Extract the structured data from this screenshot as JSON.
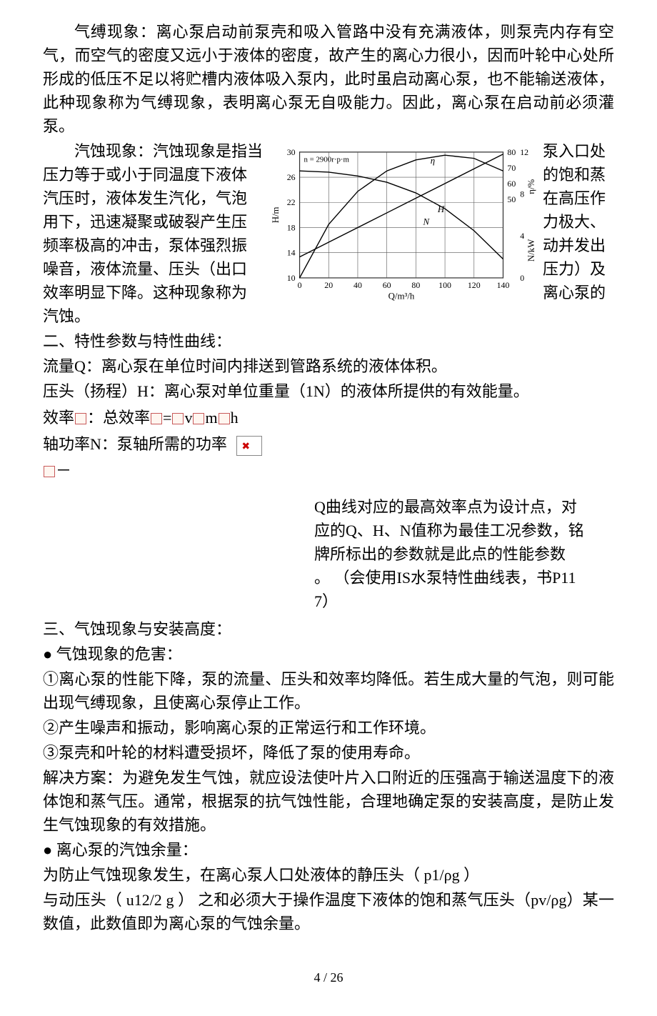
{
  "p1": "气缚现象：离心泵启动前泵壳和吸入管路中没有充满液体，则泵壳内存有空气，而空气的密度又远小于液体的密度，故产生的离心力很小，因而叶轮中心处所形成的低压不足以将贮槽内液体吸入泵内，此时虽启动离心泵，也不能输送液体，此种现象称为气缚现象，表明离心泵无自吸能力。因此，离心泵在启动前必须灌泵。",
  "wrap_left": {
    "l0": "汽蚀现象：汽蚀现象是指当",
    "l1": "压力等于或小于同温度下液体",
    "l2": "汽压时，液体发生汽化，气泡",
    "l3": "用下，迅速凝聚或破裂产生压",
    "l4": "频率极高的冲击，泵体强烈振",
    "l5": "噪音，液体流量、压头（出口",
    "l6": "效率明显下降。这种现象称为",
    "l7": "汽蚀。"
  },
  "wrap_right": {
    "r0": "泵入口处",
    "r1": "的饱和蒸",
    "r2": "在高压作",
    "r3": "力极大、",
    "r4": "动并发出",
    "r5": "压力）及",
    "r6": "离心泵的"
  },
  "chart": {
    "rpm_label": "n = 2900r·p·m",
    "x_label": "Q/m³/h",
    "y_left_label": "H/m",
    "y_right_label_top": "η/%",
    "y_right_label_bottom": "N/kW",
    "series_labels": {
      "eta": "η",
      "H": "H",
      "N": "N"
    },
    "x_ticks": [
      0,
      20,
      40,
      60,
      80,
      100,
      120,
      140
    ],
    "y_left_ticks": [
      10,
      14,
      18,
      22,
      26,
      30
    ],
    "y_right_eta_ticks": [
      50,
      60,
      70,
      80
    ],
    "y_right_N_ticks": [
      0,
      4,
      8,
      12
    ],
    "H_series": {
      "x": [
        0,
        20,
        40,
        60,
        80,
        100,
        120,
        140
      ],
      "y": [
        27,
        26.8,
        26.2,
        25.2,
        23.5,
        21,
        17.5,
        13
      ]
    },
    "eta_series": {
      "x": [
        0,
        20,
        40,
        60,
        80,
        100,
        120,
        140
      ],
      "y": [
        0,
        34,
        55,
        68,
        75,
        78,
        76,
        68
      ]
    },
    "N_series": {
      "x": [
        0,
        20,
        40,
        60,
        80,
        100,
        120,
        140
      ],
      "y": [
        2,
        3.4,
        4.8,
        6.2,
        7.6,
        9,
        10.4,
        11.8
      ]
    },
    "colors": {
      "frame": "#000000",
      "grid": "#555555",
      "curve": "#000000",
      "text": "#000000",
      "bg": "#ffffff"
    },
    "font_size_ticks": 12,
    "font_size_label": 13,
    "line_width": 1.4
  },
  "sec2_heading": "二、特性参数与特性曲线：",
  "sec2_q": "流量Q：离心泵在单位时间内排送到管路系统的液体体积。",
  "sec2_h": "压头（扬程）H：离心泵对单位重量（1N）的液体所提供的有效能量。",
  "sec2_eff_pre": "效率",
  "sec2_eff_mid": "：总效率",
  "sec2_eff_eq1": "=",
  "sec2_eff_v": "v",
  "sec2_eff_m": "m",
  "sec2_eff_h": "h",
  "sec2_n": "轴功率N：泵轴所需的功率",
  "sec2_dash": "－",
  "right_block": {
    "l1": "Q曲线对应的最高效率点为设计点，对",
    "l2": "应的Q、H、N值称为最佳工况参数，铭",
    "l3": "牌所标出的参数就是此点的性能参数",
    "l4": "。 （会使用IS水泵特性曲线表，书P11",
    "l5": "7）"
  },
  "sec3_heading": "三、气蚀现象与安装高度：",
  "sec3_b1": "●  气蚀现象的危害：",
  "sec3_1": "①离心泵的性能下降，泵的流量、压头和效率均降低。若生成大量的气泡，则可能出现气缚现象，且使离心泵停止工作。",
  "sec3_2": "②产生噪声和振动，影响离心泵的正常运行和工作环境。",
  "sec3_3": "③泵壳和叶轮的材料遭受损坏，降低了泵的使用寿命。",
  "sec3_sol": "解决方案：为避免发生气蚀，就应设法使叶片入口附近的压强高于输送温度下的液体饱和蒸气压。通常，根据泵的抗气蚀性能，合理地确定泵的安装高度，是防止发生气蚀现象的有效措施。",
  "sec3_b2": "●  离心泵的汽蚀余量：",
  "sec3_np1": "为防止气蚀现象发生，在离心泵人口处液体的静压头（ p1/ρg ）",
  "sec3_np2": "与动压头（ u12/2 g ） 之和必须大于操作温度下液体的饱和蒸气压头（pv/ρg）某一数值，此数值即为离心泵的气蚀余量。",
  "page_num": "4 / 26"
}
